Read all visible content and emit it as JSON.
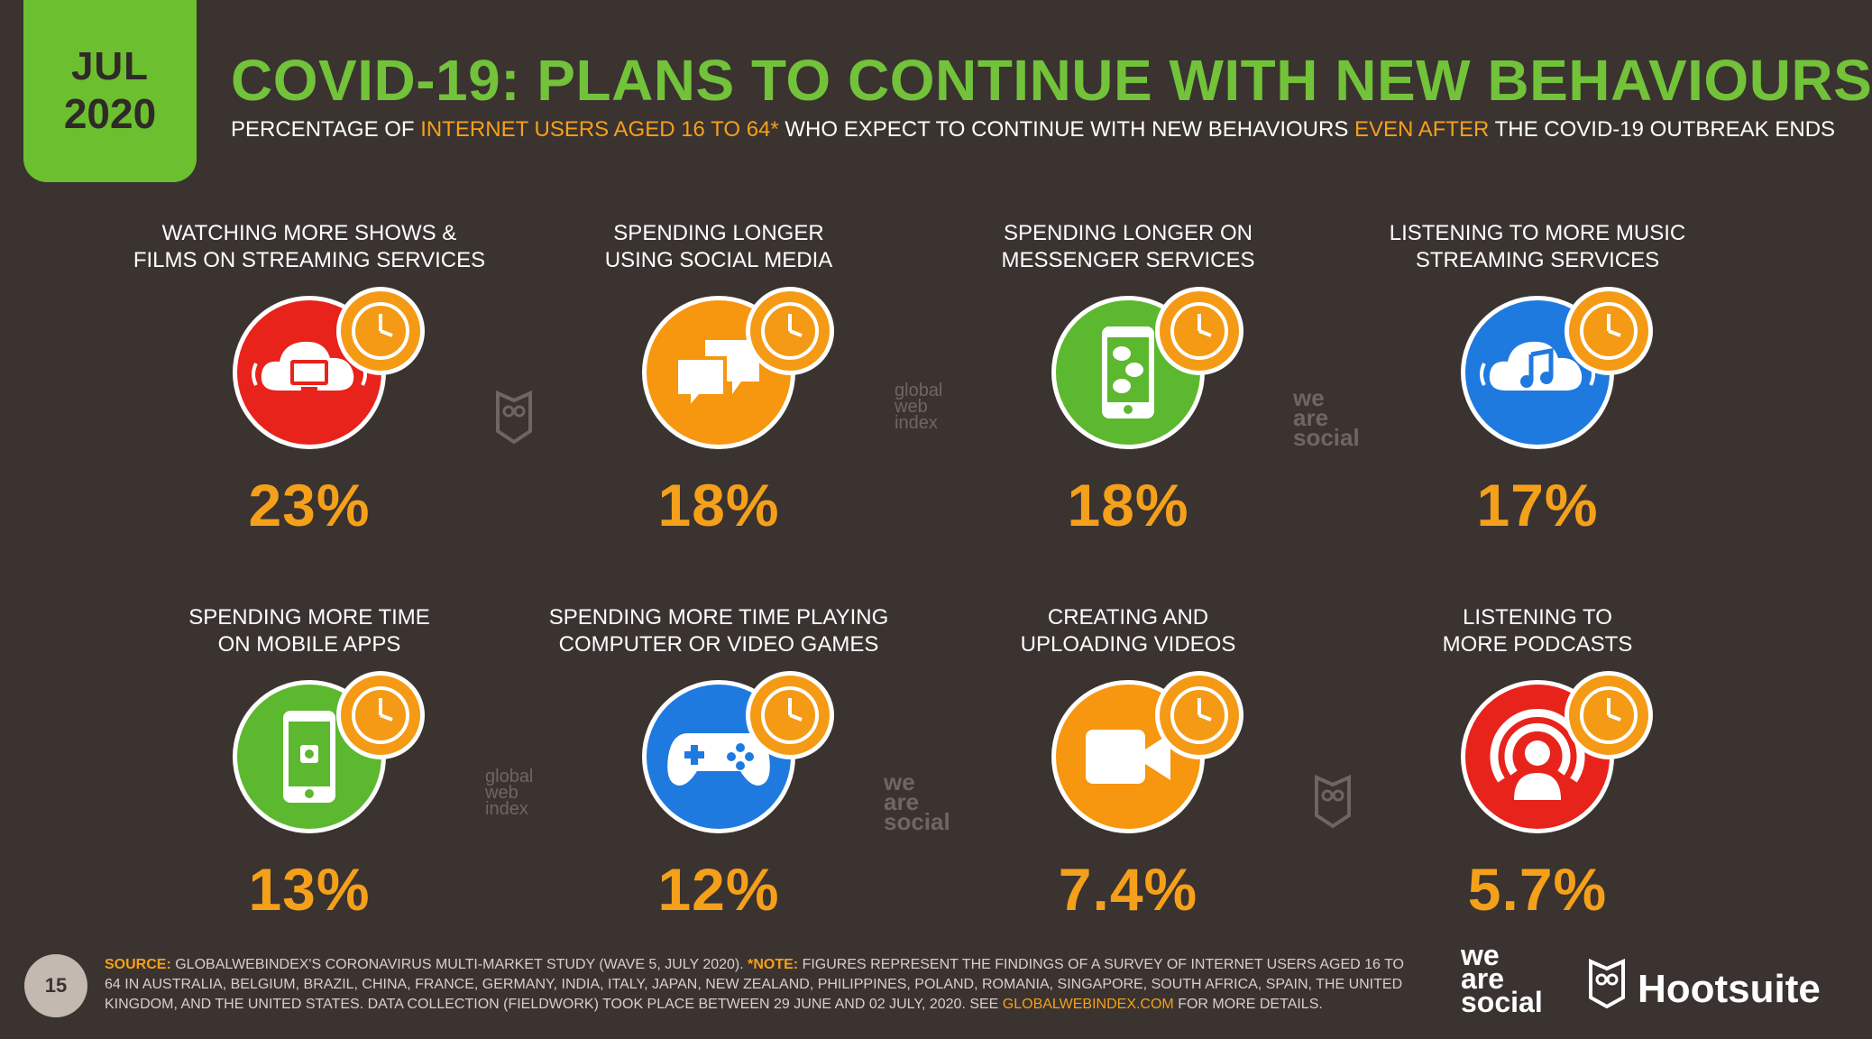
{
  "date": {
    "month": "JUL",
    "year": "2020"
  },
  "header": {
    "title": "COVID-19: PLANS TO CONTINUE WITH NEW BEHAVIOURS",
    "subtitle_part1": "PERCENTAGE OF ",
    "subtitle_hl1": "INTERNET USERS AGED 16 TO 64*",
    "subtitle_part2": " WHO EXPECT TO CONTINUE WITH NEW BEHAVIOURS ",
    "subtitle_hl2": "EVEN AFTER",
    "subtitle_part3": " THE COVID-19 OUTBREAK ENDS"
  },
  "colors": {
    "red": "#e8231b",
    "orange": "#f7960f",
    "green": "#5cb82f",
    "blue": "#1f7ae0",
    "accent": "#f5a01a",
    "title": "#72c23a"
  },
  "cards": [
    {
      "label": "WATCHING MORE SHOWS &\nFILMS ON STREAMING SERVICES",
      "value": "23%",
      "icon": "cloud-tv-icon"
    },
    {
      "label": "SPENDING LONGER\nUSING SOCIAL MEDIA",
      "value": "18%",
      "icon": "speech-bubbles-icon"
    },
    {
      "label": "SPENDING LONGER ON\nMESSENGER SERVICES",
      "value": "18%",
      "icon": "phone-chat-icon"
    },
    {
      "label": "LISTENING TO MORE MUSIC\nSTREAMING SERVICES",
      "value": "17%",
      "icon": "cloud-music-icon"
    },
    {
      "label": "SPENDING MORE TIME\nON MOBILE APPS",
      "value": "13%",
      "icon": "mobile-app-icon"
    },
    {
      "label": "SPENDING MORE TIME PLAYING\nCOMPUTER OR VIDEO GAMES",
      "value": "12%",
      "icon": "gamepad-icon"
    },
    {
      "label": "CREATING AND\nUPLOADING VIDEOS",
      "value": "7.4%",
      "icon": "video-camera-icon"
    },
    {
      "label": "LISTENING TO\nMORE PODCASTS",
      "value": "5.7%",
      "icon": "podcast-icon"
    }
  ],
  "watermarks": {
    "gwi": [
      "global",
      "web",
      "index"
    ],
    "was": [
      "we",
      "are",
      "social"
    ]
  },
  "footer": {
    "page_number": "15",
    "source_label": "SOURCE:",
    "source_text": " GLOBALWEBINDEX'S CORONAVIRUS MULTI-MARKET STUDY (WAVE 5, JULY 2020). ",
    "note_label": "*NOTE:",
    "note_text": " FIGURES REPRESENT THE FINDINGS OF A SURVEY OF INTERNET USERS AGED 16 TO 64 IN AUSTRALIA, BELGIUM, BRAZIL, CHINA, FRANCE, GERMANY, INDIA, ITALY, JAPAN, NEW ZEALAND, PHILIPPINES, POLAND, ROMANIA, SINGAPORE, SOUTH AFRICA, SPAIN, THE UNITED KINGDOM, AND THE UNITED STATES. DATA COLLECTION (FIELDWORK) TOOK PLACE BETWEEN 29 JUNE AND 02 JULY, 2020. SEE ",
    "link_text": "GLOBALWEBINDEX.COM",
    "end_text": " FOR MORE DETAILS.",
    "brand_was": [
      "we",
      "are",
      "social"
    ],
    "brand_hs": "Hootsuite"
  }
}
